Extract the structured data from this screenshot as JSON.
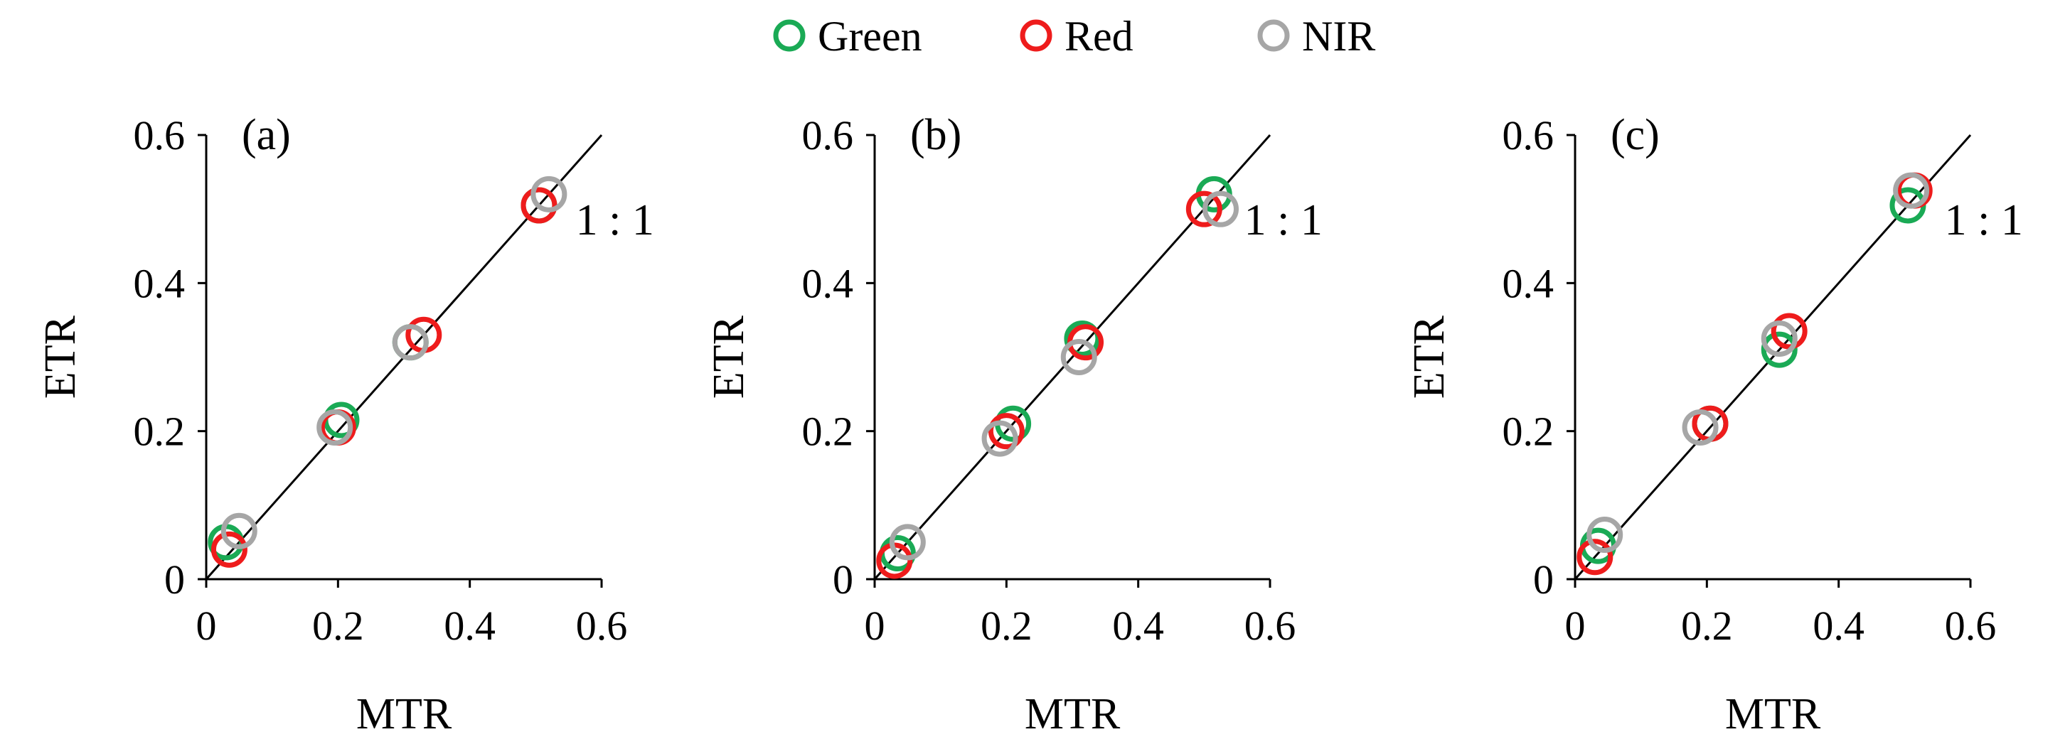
{
  "legend": [
    {
      "name": "Green",
      "color": "#1aaa55"
    },
    {
      "name": "Red",
      "color": "#ee1c1c"
    },
    {
      "name": "NIR",
      "color": "#a6a6a6"
    }
  ],
  "chart_data": [
    {
      "type": "scatter",
      "panel_label": "(a)",
      "xlabel": "MTR",
      "ylabel": "ETR",
      "xlim": [
        0,
        0.6
      ],
      "ylim": [
        0,
        0.6
      ],
      "xticks": [
        "0",
        "0.2",
        "0.4",
        "0.6"
      ],
      "yticks": [
        "0",
        "0.2",
        "0.4",
        "0.6"
      ],
      "reference_line": {
        "label": "1 : 1",
        "from": [
          0,
          0
        ],
        "to": [
          0.6,
          0.6
        ]
      },
      "series": [
        {
          "name": "Green",
          "points": [
            [
              0.03,
              0.05
            ],
            [
              0.205,
              0.215
            ],
            [
              0.31,
              0.32
            ],
            [
              0.505,
              0.505
            ]
          ]
        },
        {
          "name": "Red",
          "points": [
            [
              0.035,
              0.04
            ],
            [
              0.2,
              0.205
            ],
            [
              0.33,
              0.33
            ],
            [
              0.505,
              0.505
            ]
          ]
        },
        {
          "name": "NIR",
          "points": [
            [
              0.05,
              0.065
            ],
            [
              0.195,
              0.205
            ],
            [
              0.31,
              0.32
            ],
            [
              0.52,
              0.52
            ]
          ]
        }
      ]
    },
    {
      "type": "scatter",
      "panel_label": "(b)",
      "xlabel": "MTR",
      "ylabel": "ETR",
      "xlim": [
        0,
        0.6
      ],
      "ylim": [
        0,
        0.6
      ],
      "xticks": [
        "0",
        "0.2",
        "0.4",
        "0.6"
      ],
      "yticks": [
        "0",
        "0.2",
        "0.4",
        "0.6"
      ],
      "reference_line": {
        "label": "1 : 1",
        "from": [
          0,
          0
        ],
        "to": [
          0.6,
          0.6
        ]
      },
      "series": [
        {
          "name": "Green",
          "points": [
            [
              0.035,
              0.035
            ],
            [
              0.21,
              0.21
            ],
            [
              0.315,
              0.325
            ],
            [
              0.515,
              0.52
            ]
          ]
        },
        {
          "name": "Red",
          "points": [
            [
              0.03,
              0.025
            ],
            [
              0.2,
              0.2
            ],
            [
              0.32,
              0.32
            ],
            [
              0.5,
              0.5
            ]
          ]
        },
        {
          "name": "NIR",
          "points": [
            [
              0.05,
              0.05
            ],
            [
              0.19,
              0.19
            ],
            [
              0.31,
              0.3
            ],
            [
              0.525,
              0.5
            ]
          ]
        }
      ]
    },
    {
      "type": "scatter",
      "panel_label": "(c)",
      "xlabel": "MTR",
      "ylabel": "ETR",
      "xlim": [
        0,
        0.6
      ],
      "ylim": [
        0,
        0.6
      ],
      "xticks": [
        "0",
        "0.2",
        "0.4",
        "0.6"
      ],
      "yticks": [
        "0",
        "0.2",
        "0.4",
        "0.6"
      ],
      "reference_line": {
        "label": "1 : 1",
        "from": [
          0,
          0
        ],
        "to": [
          0.6,
          0.6
        ]
      },
      "series": [
        {
          "name": "Green",
          "points": [
            [
              0.035,
              0.045
            ],
            [
              0.205,
              0.21
            ],
            [
              0.31,
              0.31
            ],
            [
              0.505,
              0.505
            ]
          ]
        },
        {
          "name": "Red",
          "points": [
            [
              0.03,
              0.03
            ],
            [
              0.205,
              0.21
            ],
            [
              0.325,
              0.335
            ],
            [
              0.515,
              0.525
            ]
          ]
        },
        {
          "name": "NIR",
          "points": [
            [
              0.045,
              0.06
            ],
            [
              0.19,
              0.205
            ],
            [
              0.31,
              0.325
            ],
            [
              0.51,
              0.525
            ]
          ]
        }
      ]
    }
  ]
}
